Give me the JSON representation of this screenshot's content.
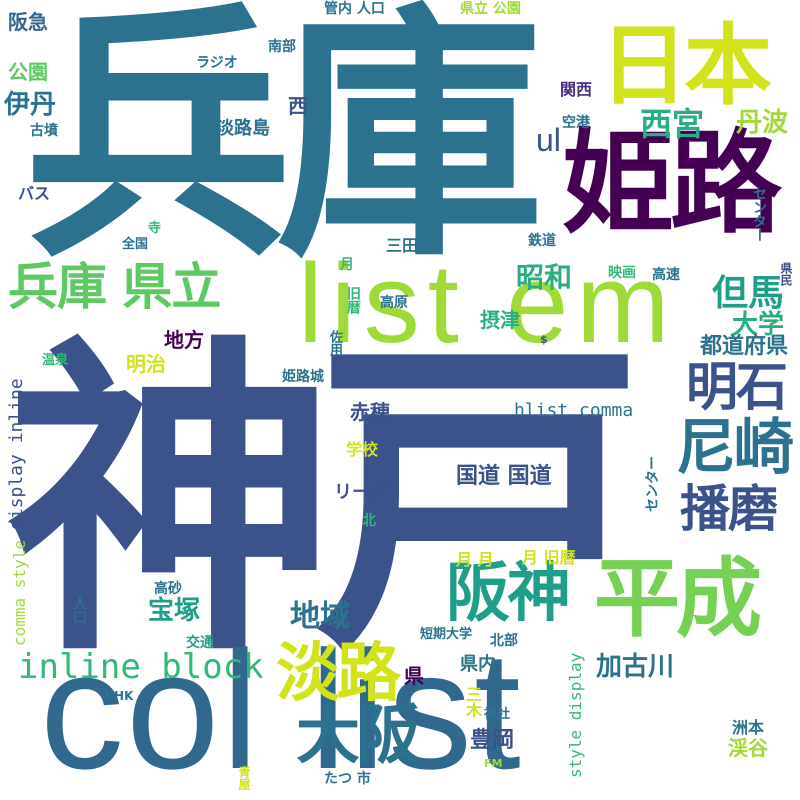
{
  "colors": {
    "background": "#ffffff",
    "navy": "#3b528b",
    "teal": "#2c728e",
    "blue_teal": "#31688e",
    "dark_purple": "#440154",
    "purple": "#472d7b",
    "green": "#5ec962",
    "lime": "#a0da39",
    "yellow": "#d2e21b",
    "sea_green": "#28ae80",
    "mint": "#35b779",
    "cyan_teal": "#1f9e89",
    "light_green": "#75d054"
  },
  "words": [
    {
      "id": "hyogo-big",
      "text": "兵庫",
      "color": "#2c728e"
    },
    {
      "id": "kobe-big",
      "text": "神戸",
      "color": "#3b528b"
    },
    {
      "id": "himeji",
      "text": "姫路",
      "color": "#440154"
    },
    {
      "id": "nihon",
      "text": "日本",
      "color": "#d2e21b"
    },
    {
      "id": "list-em",
      "text": "list em",
      "color": "#a0da39"
    },
    {
      "id": "col-list",
      "text": "col list",
      "color": "#31688e"
    },
    {
      "id": "heisei",
      "text": "平成",
      "color": "#75d054"
    },
    {
      "id": "hanshin",
      "text": "阪神",
      "color": "#1f9e89"
    },
    {
      "id": "awaji-big",
      "text": "淡路",
      "color": "#d2e21b"
    },
    {
      "id": "osaka",
      "text": "大阪",
      "color": "#2c728e"
    },
    {
      "id": "hyogo-kenritsu",
      "text": "兵庫 県立",
      "color": "#5ec962"
    },
    {
      "id": "akashi",
      "text": "明石",
      "color": "#3b528b"
    },
    {
      "id": "amagasaki",
      "text": "尼崎",
      "color": "#2c728e"
    },
    {
      "id": "harima",
      "text": "播磨",
      "color": "#3b528b"
    },
    {
      "id": "nishinomiya",
      "text": "西宮",
      "color": "#28ae80"
    },
    {
      "id": "tanba",
      "text": "丹波",
      "color": "#a0da39"
    },
    {
      "id": "tajima",
      "text": "但馬",
      "color": "#1f9e89"
    },
    {
      "id": "showa",
      "text": "昭和",
      "color": "#28ae80"
    },
    {
      "id": "daigaku",
      "text": "大学",
      "color": "#28ae80"
    },
    {
      "id": "todofuken",
      "text": "都道府県",
      "color": "#2c728e"
    },
    {
      "id": "itami",
      "text": "伊丹",
      "color": "#2c728e"
    },
    {
      "id": "koen-left",
      "text": "公園",
      "color": "#5ec962"
    },
    {
      "id": "hankyu",
      "text": "阪急",
      "color": "#31688e"
    },
    {
      "id": "kankou-jinkou",
      "text": "管内 人口",
      "color": "#2c728e"
    },
    {
      "id": "kenritsu-koen",
      "text": "県立 公園",
      "color": "#a0da39"
    },
    {
      "id": "radio",
      "text": "ラジオ",
      "color": "#2c728e"
    },
    {
      "id": "nanbu",
      "text": "南部",
      "color": "#2c728e"
    },
    {
      "id": "kansai",
      "text": "関西",
      "color": "#472d7b"
    },
    {
      "id": "ul",
      "text": "ul",
      "color": "#3b528b"
    },
    {
      "id": "kofun",
      "text": "古墳",
      "color": "#2c728e"
    },
    {
      "id": "awajishima",
      "text": "淡路島",
      "color": "#2c728e"
    },
    {
      "id": "nishi",
      "text": "西",
      "color": "#3b528b"
    },
    {
      "id": "kuukou",
      "text": "空港",
      "color": "#2c728e"
    },
    {
      "id": "bus",
      "text": "バス",
      "color": "#3b528b"
    },
    {
      "id": "tera",
      "text": "寺",
      "color": "#35b779"
    },
    {
      "id": "zenkoku",
      "text": "全国",
      "color": "#2c728e"
    },
    {
      "id": "sanda",
      "text": "三田",
      "color": "#2c728e"
    },
    {
      "id": "tetsudo",
      "text": "鉄道",
      "color": "#2c728e"
    },
    {
      "id": "center-right",
      "text": "センター",
      "color": "#2c728e"
    },
    {
      "id": "kenmin",
      "text": "県民",
      "color": "#3b528b"
    },
    {
      "id": "tsuki-a",
      "text": "月",
      "color": "#35b779"
    },
    {
      "id": "kyureki-a",
      "text": "旧暦",
      "color": "#35b779"
    },
    {
      "id": "eiga",
      "text": "映画",
      "color": "#35b779"
    },
    {
      "id": "kousoku",
      "text": "高速",
      "color": "#2c728e"
    },
    {
      "id": "kougen",
      "text": "高原",
      "color": "#2c728e"
    },
    {
      "id": "setsu",
      "text": "摂津",
      "color": "#28ae80"
    },
    {
      "id": "sayo",
      "text": "佐用",
      "color": "#2c728e"
    },
    {
      "id": "dollar",
      "text": "$",
      "color": "#3b528b"
    },
    {
      "id": "chihou",
      "text": "地方",
      "color": "#440154"
    },
    {
      "id": "meiji",
      "text": "明治",
      "color": "#d2e21b"
    },
    {
      "id": "display-inline",
      "text": "display inline",
      "color": "#3b528b"
    },
    {
      "id": "onsen",
      "text": "温泉",
      "color": "#35b779"
    },
    {
      "id": "himejijou",
      "text": "姫路城",
      "color": "#2c728e"
    },
    {
      "id": "ako",
      "text": "赤穂",
      "color": "#3b528b"
    },
    {
      "id": "hlist-comma",
      "text": "hlist comma",
      "color": "#2c728e"
    },
    {
      "id": "gakkou",
      "text": "学校",
      "color": "#d2e21b"
    },
    {
      "id": "kokudo",
      "text": "国道 国道",
      "color": "#3b528b"
    },
    {
      "id": "center-mid",
      "text": "センター",
      "color": "#2c728e"
    },
    {
      "id": "league",
      "text": "リーグ",
      "color": "#3b528b"
    },
    {
      "id": "kita",
      "text": "北",
      "color": "#35b779"
    },
    {
      "id": "comma-style",
      "text": "comma style",
      "color": "#a0da39"
    },
    {
      "id": "tsuki-tsuki",
      "text": "月 月",
      "color": "#d2e21b"
    },
    {
      "id": "tsuki-kyureki",
      "text": "月 旧暦",
      "color": "#d2e21b"
    },
    {
      "id": "takasago",
      "text": "高砂",
      "color": "#2c728e"
    },
    {
      "id": "takarazuka",
      "text": "宝塚",
      "color": "#1f9e89"
    },
    {
      "id": "chiiki",
      "text": "地域",
      "color": "#2c728e"
    },
    {
      "id": "jinkou",
      "text": "人口",
      "color": "#2c728e"
    },
    {
      "id": "koutsuu",
      "text": "交通",
      "color": "#1f9e89"
    },
    {
      "id": "tanki-daigaku",
      "text": "短期大学",
      "color": "#2c728e"
    },
    {
      "id": "hokubu",
      "text": "北部",
      "color": "#2c728e"
    },
    {
      "id": "inline-block",
      "text": "inline block",
      "color": "#35b779"
    },
    {
      "id": "ken",
      "text": "県",
      "color": "#440154"
    },
    {
      "id": "kennai",
      "text": "県内",
      "color": "#2c728e"
    },
    {
      "id": "kakogawa",
      "text": "加古川",
      "color": "#2c728e"
    },
    {
      "id": "style-display",
      "text": "style display",
      "color": "#35b779"
    },
    {
      "id": "nhk",
      "text": "NHK",
      "color": "#2c728e"
    },
    {
      "id": "miki",
      "text": "三木",
      "color": "#d2e21b"
    },
    {
      "id": "jinja",
      "text": "神社",
      "color": "#2c728e"
    },
    {
      "id": "toyooka",
      "text": "豊岡",
      "color": "#3b528b"
    },
    {
      "id": "sumoto",
      "text": "洲本",
      "color": "#2c728e"
    },
    {
      "id": "keikoku",
      "text": "渓谷",
      "color": "#a0da39"
    },
    {
      "id": "fm",
      "text": "FM",
      "color": "#a0da39"
    },
    {
      "id": "aoya",
      "text": "青屋",
      "color": "#d2e21b"
    },
    {
      "id": "tatsu-shi",
      "text": "たつ 市",
      "color": "#2c728e"
    }
  ]
}
